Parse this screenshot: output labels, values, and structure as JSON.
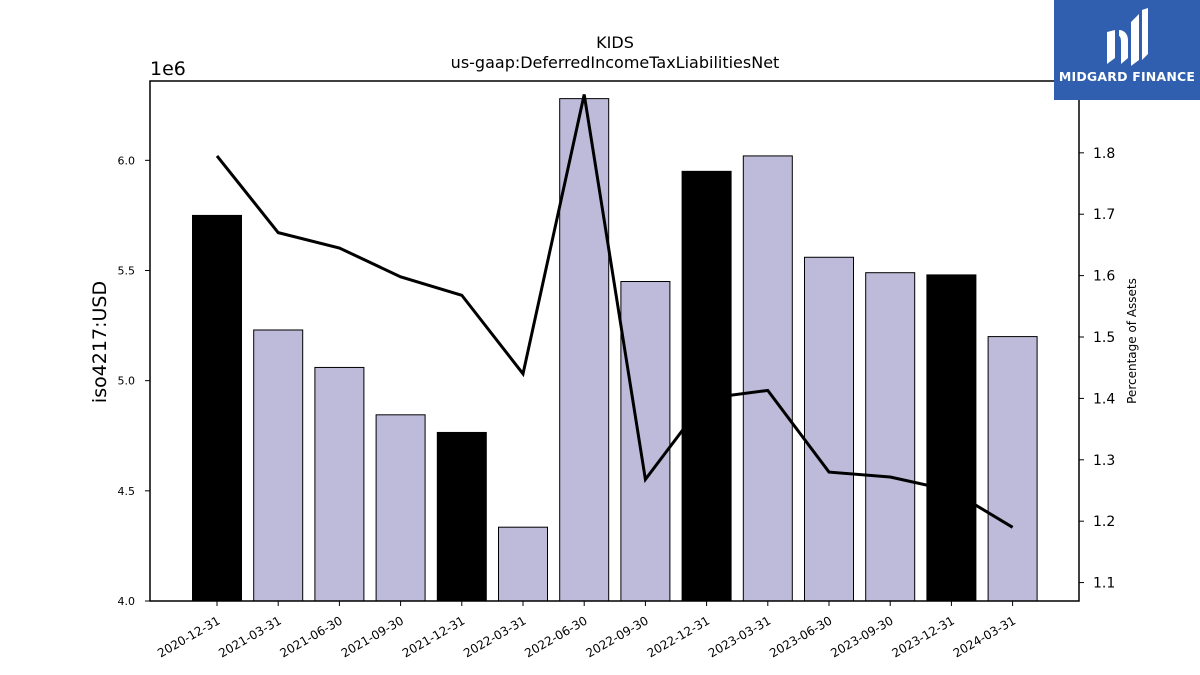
{
  "chart_data": {
    "type": "bar",
    "title": "KIDS",
    "subtitle": "us-gaap:DeferredIncomeTaxLiabilitiesNet",
    "ylabel": "iso4217:USD",
    "y_offset_label": "1e6",
    "y2label": "Percentage of Assets",
    "categories": [
      "2020-12-31",
      "2021-03-31",
      "2021-06-30",
      "2021-09-30",
      "2021-12-31",
      "2022-03-31",
      "2022-06-30",
      "2022-09-30",
      "2022-12-31",
      "2023-03-31",
      "2023-06-30",
      "2023-09-30",
      "2023-12-31",
      "2024-03-31"
    ],
    "values": [
      5750000,
      5230000,
      5060000,
      4845000,
      4765000,
      4335000,
      6280000,
      5450000,
      5950000,
      6020000,
      5560000,
      5490000,
      5480000,
      5200000
    ],
    "bar_colors": [
      "#000000",
      "#bdbbd9",
      "#bdbbd9",
      "#bdbbd9",
      "#000000",
      "#bdbbd9",
      "#bdbbd9",
      "#bdbbd9",
      "#000000",
      "#bdbbd9",
      "#bdbbd9",
      "#bdbbd9",
      "#000000",
      "#bdbbd9"
    ],
    "line_values": [
      1.795,
      1.67,
      1.645,
      1.598,
      1.568,
      1.44,
      1.895,
      1.268,
      1.4,
      1.413,
      1.28,
      1.272,
      1.25,
      1.19
    ],
    "ylim": [
      4000000,
      6360000
    ],
    "y2lim": [
      1.07,
      1.917
    ],
    "yticks": [
      4000000,
      4500000,
      5000000,
      5500000,
      6000000
    ],
    "ytick_labels": [
      "4.0",
      "4.5",
      "5.0",
      "5.5",
      "6.0"
    ],
    "y2ticks": [
      1.1,
      1.2,
      1.3,
      1.4,
      1.5,
      1.6,
      1.7,
      1.8
    ],
    "y2tick_labels": [
      "1.1",
      "1.2",
      "1.3",
      "1.4",
      "1.5",
      "1.6",
      "1.7",
      "1.8"
    ],
    "grid": false,
    "line_color": "#000000"
  },
  "logo": {
    "text": "MIDGARD FINANCE",
    "color": "#2f5fae"
  }
}
